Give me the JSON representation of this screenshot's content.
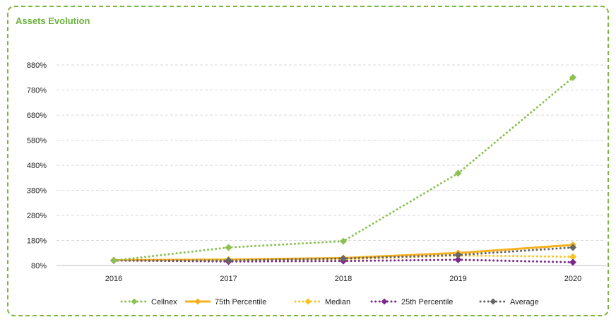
{
  "chart_data": {
    "type": "line",
    "title": "Assets Evolution",
    "x": [
      "2016",
      "2017",
      "2018",
      "2019",
      "2020"
    ],
    "y_ticks": [
      "80%",
      "180%",
      "280%",
      "380%",
      "480%",
      "580%",
      "680%",
      "780%",
      "880%"
    ],
    "ylim": [
      80,
      880
    ],
    "y_unit": "%",
    "grid": true,
    "legend_position": "bottom",
    "series": [
      {
        "name": "Cellnex",
        "values": [
          100,
          152,
          177,
          448,
          830
        ],
        "color": "#8cc152",
        "style": "dotted"
      },
      {
        "name": "75th Percentile",
        "values": [
          101,
          104,
          110,
          130,
          162
        ],
        "color": "#f5b120",
        "style": "solid"
      },
      {
        "name": "Median",
        "values": [
          100,
          103,
          105,
          120,
          115
        ],
        "color": "#f9c41f",
        "style": "dotted"
      },
      {
        "name": "25th Percentile",
        "values": [
          100,
          96,
          98,
          103,
          93
        ],
        "color": "#7b2a8c",
        "style": "dotted"
      },
      {
        "name": "Average",
        "values": [
          100,
          100,
          108,
          122,
          152
        ],
        "color": "#666666",
        "style": "dotted"
      }
    ]
  }
}
